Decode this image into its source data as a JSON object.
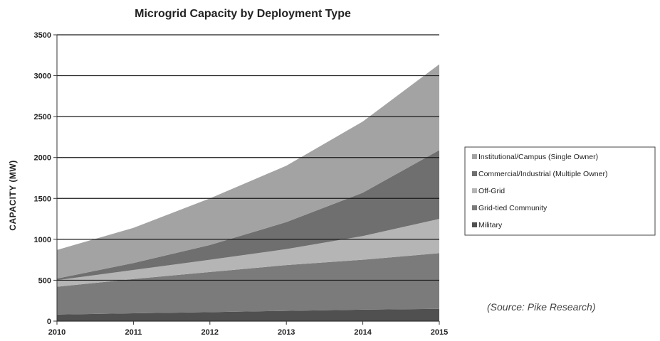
{
  "chart_data": {
    "type": "area",
    "stacked": true,
    "title": "Microgrid Capacity by Deployment Type",
    "ylabel": "CAPACITY (MW)",
    "xlabel": "",
    "x": [
      2010,
      2011,
      2012,
      2013,
      2014,
      2015
    ],
    "ylim": [
      0,
      3500
    ],
    "yticks": [
      0,
      500,
      1000,
      1500,
      2000,
      2500,
      3000,
      3500
    ],
    "grid": true,
    "legend_position": "right",
    "series": [
      {
        "name": "Military",
        "color": "#505050",
        "values": [
          80,
          95,
          110,
          125,
          140,
          150
        ]
      },
      {
        "name": "Grid-tied Community",
        "color": "#7b7b7b",
        "values": [
          340,
          420,
          490,
          560,
          610,
          680
        ]
      },
      {
        "name": "Off-Grid",
        "color": "#b5b5b5",
        "values": [
          80,
          110,
          150,
          195,
          290,
          420
        ]
      },
      {
        "name": "Commercial/Industrial (Multiple Owner)",
        "color": "#6f6f6f",
        "values": [
          20,
          85,
          180,
          330,
          530,
          840
        ]
      },
      {
        "name": "Institutional/Campus (Single Owner)",
        "color": "#a3a3a3",
        "values": [
          350,
          430,
          570,
          690,
          870,
          1050
        ]
      }
    ],
    "source_note": "(Source:  Pike Research)"
  }
}
